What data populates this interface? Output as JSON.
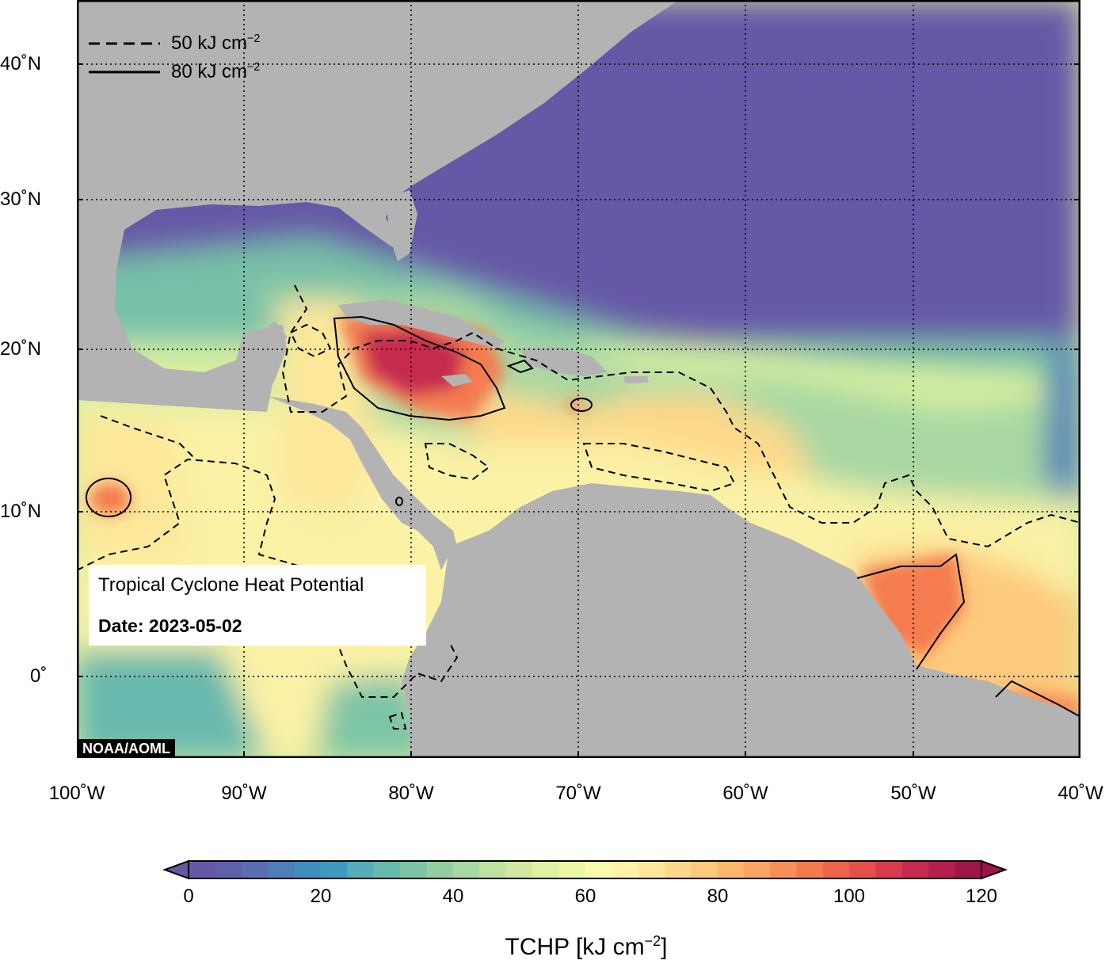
{
  "map": {
    "lat_labels": [
      "40˚N",
      "30˚N",
      "20˚N",
      "10˚N",
      "0˚"
    ],
    "lon_labels": [
      "100˚W",
      "90˚W",
      "80˚W",
      "70˚W",
      "60˚W",
      "50˚W",
      "40˚W"
    ],
    "colors": {
      "land": "#b3b3b3",
      "cold": "#6658a6",
      "frame": "#000000"
    }
  },
  "legend": {
    "dashed_label": "50 kJ cm",
    "solid_label": "80 kJ cm",
    "exponent": "−2"
  },
  "info": {
    "title": "Tropical Cyclone Heat Potential",
    "date_label": "Date: 2023-05-02"
  },
  "credit": "NOAA/AOML",
  "colorbar": {
    "ticks": [
      "0",
      "20",
      "40",
      "60",
      "80",
      "100",
      "120"
    ],
    "title": "TCHP [kJ cm",
    "title_exponent": "−2",
    "title_suffix": "]",
    "colors": [
      "#6658a6",
      "#5e60ab",
      "#5a6eb1",
      "#4f7fb8",
      "#3f8fbd",
      "#3c9bbf",
      "#55adb9",
      "#68b9ad",
      "#7dc4a6",
      "#93cfa3",
      "#a8d8a2",
      "#bde2a1",
      "#cfe9a0",
      "#e0f1a1",
      "#eef7a4",
      "#fbfbad",
      "#fff3a8",
      "#fee79a",
      "#fed98a",
      "#fdc97b",
      "#fdb86d",
      "#fba564",
      "#f8905a",
      "#f47b50",
      "#ee654a",
      "#e4504a",
      "#d63c4d",
      "#c62b4f",
      "#b31f4e",
      "#9e1548"
    ]
  }
}
